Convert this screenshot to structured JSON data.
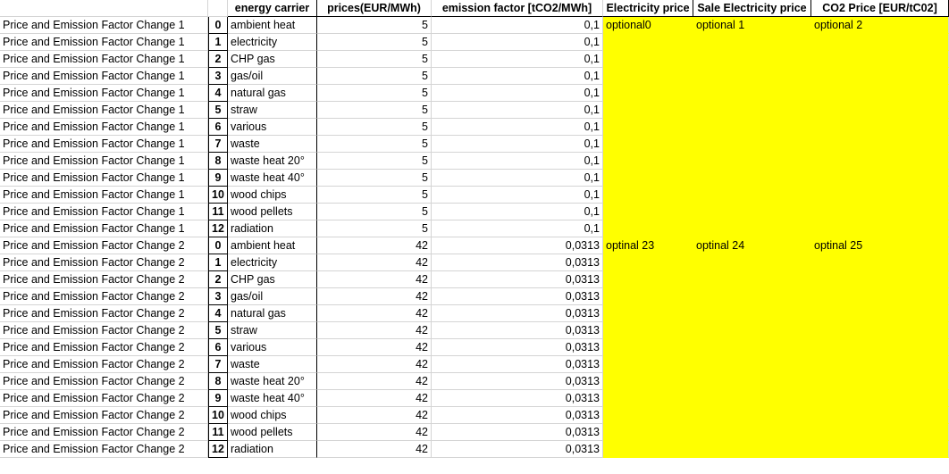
{
  "header": {
    "col0": "",
    "col1": "",
    "energy_carrier": "energy carrier",
    "prices": "prices(EUR/MWh)",
    "emission_factor": "emission factor [tCO2/MWh]",
    "electricity_price": "Electricity price",
    "sale_electricity_price": "Sale Electricity price",
    "co2_price": "CO2 Price [EUR/tC02]"
  },
  "rows": [
    {
      "name": "Price and Emission Factor Change 1",
      "idx": "0",
      "carrier": "ambient heat",
      "price": "5",
      "ef": "0,1",
      "elec": "optional0",
      "sale": "optional 1",
      "co2": "optional 2"
    },
    {
      "name": "Price and Emission Factor Change 1",
      "idx": "1",
      "carrier": "electricity",
      "price": "5",
      "ef": "0,1",
      "elec": "",
      "sale": "",
      "co2": ""
    },
    {
      "name": "Price and Emission Factor Change 1",
      "idx": "2",
      "carrier": "CHP gas",
      "price": "5",
      "ef": "0,1",
      "elec": "",
      "sale": "",
      "co2": ""
    },
    {
      "name": "Price and Emission Factor Change 1",
      "idx": "3",
      "carrier": "gas/oil",
      "price": "5",
      "ef": "0,1",
      "elec": "",
      "sale": "",
      "co2": ""
    },
    {
      "name": "Price and Emission Factor Change 1",
      "idx": "4",
      "carrier": "natural gas",
      "price": "5",
      "ef": "0,1",
      "elec": "",
      "sale": "",
      "co2": ""
    },
    {
      "name": "Price and Emission Factor Change 1",
      "idx": "5",
      "carrier": "straw",
      "price": "5",
      "ef": "0,1",
      "elec": "",
      "sale": "",
      "co2": ""
    },
    {
      "name": "Price and Emission Factor Change 1",
      "idx": "6",
      "carrier": "various",
      "price": "5",
      "ef": "0,1",
      "elec": "",
      "sale": "",
      "co2": ""
    },
    {
      "name": "Price and Emission Factor Change 1",
      "idx": "7",
      "carrier": "waste",
      "price": "5",
      "ef": "0,1",
      "elec": "",
      "sale": "",
      "co2": ""
    },
    {
      "name": "Price and Emission Factor Change 1",
      "idx": "8",
      "carrier": "waste heat 20°",
      "price": "5",
      "ef": "0,1",
      "elec": "",
      "sale": "",
      "co2": ""
    },
    {
      "name": "Price and Emission Factor Change 1",
      "idx": "9",
      "carrier": "waste heat 40°",
      "price": "5",
      "ef": "0,1",
      "elec": "",
      "sale": "",
      "co2": ""
    },
    {
      "name": "Price and Emission Factor Change 1",
      "idx": "10",
      "carrier": "wood chips",
      "price": "5",
      "ef": "0,1",
      "elec": "",
      "sale": "",
      "co2": ""
    },
    {
      "name": "Price and Emission Factor Change 1",
      "idx": "11",
      "carrier": "wood pellets",
      "price": "5",
      "ef": "0,1",
      "elec": "",
      "sale": "",
      "co2": ""
    },
    {
      "name": "Price and Emission Factor Change 1",
      "idx": "12",
      "carrier": "radiation",
      "price": "5",
      "ef": "0,1",
      "elec": "",
      "sale": "",
      "co2": ""
    },
    {
      "name": "Price and Emission Factor Change 2",
      "idx": "0",
      "carrier": "ambient heat",
      "price": "42",
      "ef": "0,0313",
      "elec": "optinal 23",
      "sale": "optinal 24",
      "co2": "optinal 25"
    },
    {
      "name": "Price and Emission Factor Change 2",
      "idx": "1",
      "carrier": "electricity",
      "price": "42",
      "ef": "0,0313",
      "elec": "",
      "sale": "",
      "co2": ""
    },
    {
      "name": "Price and Emission Factor Change 2",
      "idx": "2",
      "carrier": "CHP gas",
      "price": "42",
      "ef": "0,0313",
      "elec": "",
      "sale": "",
      "co2": ""
    },
    {
      "name": "Price and Emission Factor Change 2",
      "idx": "3",
      "carrier": "gas/oil",
      "price": "42",
      "ef": "0,0313",
      "elec": "",
      "sale": "",
      "co2": ""
    },
    {
      "name": "Price and Emission Factor Change 2",
      "idx": "4",
      "carrier": "natural gas",
      "price": "42",
      "ef": "0,0313",
      "elec": "",
      "sale": "",
      "co2": ""
    },
    {
      "name": "Price and Emission Factor Change 2",
      "idx": "5",
      "carrier": "straw",
      "price": "42",
      "ef": "0,0313",
      "elec": "",
      "sale": "",
      "co2": ""
    },
    {
      "name": "Price and Emission Factor Change 2",
      "idx": "6",
      "carrier": "various",
      "price": "42",
      "ef": "0,0313",
      "elec": "",
      "sale": "",
      "co2": ""
    },
    {
      "name": "Price and Emission Factor Change 2",
      "idx": "7",
      "carrier": "waste",
      "price": "42",
      "ef": "0,0313",
      "elec": "",
      "sale": "",
      "co2": ""
    },
    {
      "name": "Price and Emission Factor Change 2",
      "idx": "8",
      "carrier": "waste heat 20°",
      "price": "42",
      "ef": "0,0313",
      "elec": "",
      "sale": "",
      "co2": ""
    },
    {
      "name": "Price and Emission Factor Change 2",
      "idx": "9",
      "carrier": "waste heat 40°",
      "price": "42",
      "ef": "0,0313",
      "elec": "",
      "sale": "",
      "co2": ""
    },
    {
      "name": "Price and Emission Factor Change 2",
      "idx": "10",
      "carrier": "wood chips",
      "price": "42",
      "ef": "0,0313",
      "elec": "",
      "sale": "",
      "co2": ""
    },
    {
      "name": "Price and Emission Factor Change 2",
      "idx": "11",
      "carrier": "wood pellets",
      "price": "42",
      "ef": "0,0313",
      "elec": "",
      "sale": "",
      "co2": ""
    },
    {
      "name": "Price and Emission Factor Change 2",
      "idx": "12",
      "carrier": "radiation",
      "price": "42",
      "ef": "0,0313",
      "elec": "",
      "sale": "",
      "co2": ""
    }
  ],
  "colors": {
    "highlight": "#ffff00",
    "gridline": "#d4d4d4",
    "border": "#000000"
  }
}
